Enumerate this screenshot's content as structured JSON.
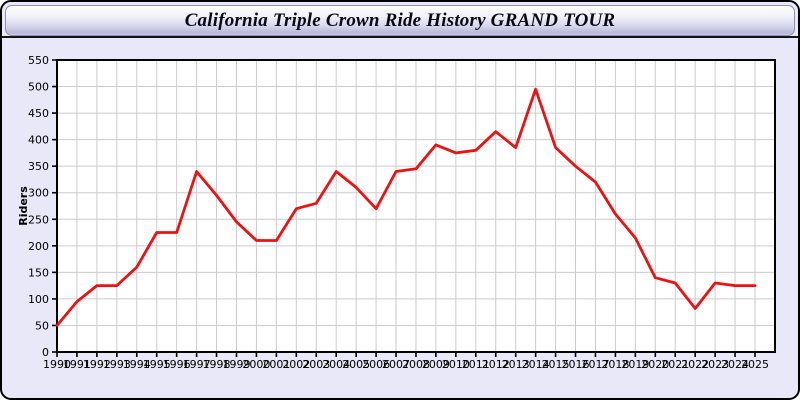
{
  "window": {
    "title": "California Triple Crown Ride History GRAND TOUR"
  },
  "chart_data": {
    "type": "line",
    "title": "California Triple Crown Ride History GRAND TOUR",
    "xlabel": "",
    "ylabel": "Riders",
    "ylim": [
      0,
      550
    ],
    "ytick_step": 50,
    "grid": true,
    "legend": "none",
    "x": [
      "1990",
      "1991",
      "1992",
      "1993",
      "1994",
      "1995",
      "1996",
      "1997",
      "1998",
      "1999",
      "2000",
      "2001",
      "2002",
      "2003",
      "2004",
      "2005",
      "2006",
      "2007",
      "2008",
      "2009",
      "2010",
      "2011",
      "2012",
      "2013",
      "2014",
      "2015",
      "2016",
      "2017",
      "2018",
      "2019",
      "2020",
      "2021",
      "2022",
      "2023",
      "2024",
      "2025"
    ],
    "series": [
      {
        "name": "Riders",
        "color": "#ee1111",
        "values": [
          50,
          95,
          125,
          125,
          160,
          225,
          225,
          340,
          295,
          245,
          210,
          210,
          270,
          280,
          340,
          310,
          270,
          340,
          345,
          390,
          375,
          380,
          415,
          385,
          495,
          385,
          350,
          320,
          260,
          215,
          140,
          130,
          82,
          130,
          125,
          125
        ]
      }
    ]
  },
  "colors": {
    "frame_border": "#000000",
    "body_bg": "#e8e8f8",
    "plot_bg": "#ffffff",
    "grid": "#cccccc",
    "axis": "#000000",
    "tick_text": "#000000",
    "titlebar_top": "#ffffff",
    "titlebar_bottom": "#b9b9d8",
    "line": "#ee1111"
  }
}
